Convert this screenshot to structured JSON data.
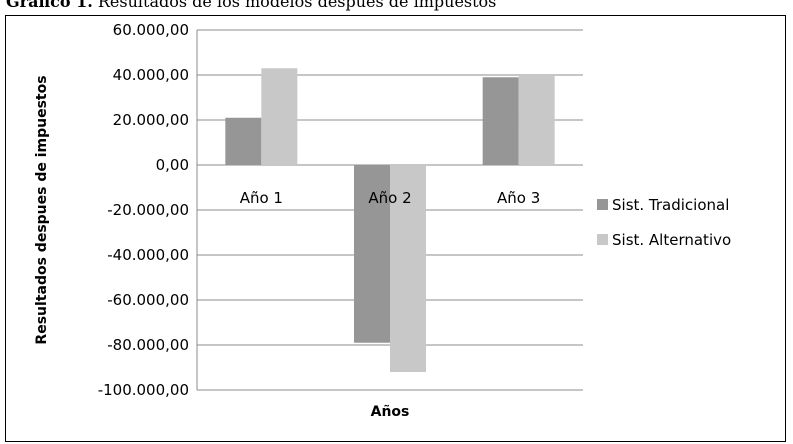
{
  "caption": {
    "label": "Gráfico 1.",
    "text": "Resultados de los modelos despues de impuestos"
  },
  "chart_data": {
    "type": "bar",
    "categories": [
      "Año 1",
      "Año 2",
      "Año 3"
    ],
    "series": [
      {
        "name": "Sist. Tradicional",
        "color": "#969696",
        "values": [
          21000,
          -79000,
          39000
        ]
      },
      {
        "name": "Sist. Alternativo",
        "color": "#c8c8c8",
        "values": [
          43000,
          -92000,
          40000
        ]
      }
    ],
    "xlabel": "Años",
    "ylabel": "Resultados despues de impuestos",
    "ylim": [
      -100000,
      60000
    ],
    "yticks": [
      60000,
      40000,
      20000,
      0,
      -20000,
      -40000,
      -60000,
      -80000,
      -100000
    ],
    "ytick_labels": [
      "60.000,00",
      "40.000,00",
      "20.000,00",
      "0,00",
      "-20.000,00",
      "-40.000,00",
      "-60.000,00",
      "-80.000,00",
      "-100.000,00"
    ],
    "grid": true,
    "legend": "right"
  }
}
